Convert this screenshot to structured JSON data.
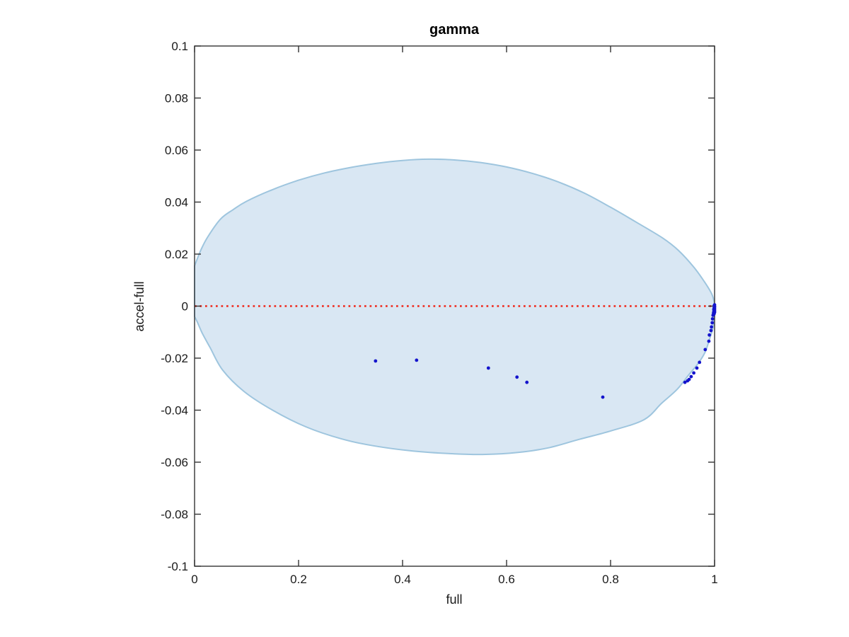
{
  "figure": {
    "title": "gamma",
    "xlabel": "full",
    "ylabel": "accel-full"
  },
  "chart_data": {
    "type": "scatter",
    "title": "gamma",
    "xlabel": "full",
    "ylabel": "accel-full",
    "xlim": [
      0,
      1
    ],
    "ylim": [
      -0.1,
      0.1
    ],
    "grid": false,
    "legend": "none",
    "x_ticks": {
      "values": [
        0,
        0.2,
        0.4,
        0.6,
        0.8,
        1
      ],
      "labels": [
        "0",
        "0.2",
        "0.4",
        "0.6",
        "0.8",
        "1"
      ]
    },
    "y_ticks": {
      "values": [
        0.1,
        0.08,
        0.06,
        0.04,
        0.02,
        0,
        -0.02,
        -0.04,
        -0.06,
        -0.08,
        -0.1
      ],
      "labels": [
        "0.1",
        "0.08",
        "0.06",
        "0.04",
        "0.02",
        "0",
        "-0.02",
        "-0.04",
        "-0.06",
        "-0.08",
        "-0.1"
      ]
    },
    "zero_line": {
      "y": 0,
      "style": "dotted",
      "color": "#ee3529"
    },
    "envelope": {
      "fill": "#d9e7f3",
      "stroke": "#9ec5de",
      "upper": [
        [
          0,
          0.0155
        ],
        [
          0.012,
          0.0215
        ],
        [
          0.025,
          0.0265
        ],
        [
          0.05,
          0.0335
        ],
        [
          0.075,
          0.0372
        ],
        [
          0.1,
          0.0403
        ],
        [
          0.15,
          0.0448
        ],
        [
          0.2,
          0.0484
        ],
        [
          0.25,
          0.0512
        ],
        [
          0.3,
          0.0533
        ],
        [
          0.35,
          0.0549
        ],
        [
          0.4,
          0.056
        ],
        [
          0.45,
          0.0565
        ],
        [
          0.5,
          0.0562
        ],
        [
          0.55,
          0.0552
        ],
        [
          0.6,
          0.0535
        ],
        [
          0.65,
          0.051
        ],
        [
          0.7,
          0.0477
        ],
        [
          0.75,
          0.0434
        ],
        [
          0.8,
          0.038
        ],
        [
          0.85,
          0.0322
        ],
        [
          0.9,
          0.0262
        ],
        [
          0.93,
          0.0215
        ],
        [
          0.96,
          0.015
        ],
        [
          0.98,
          0.0095
        ],
        [
          0.995,
          0.0045
        ],
        [
          1,
          0.0005
        ]
      ],
      "lower": [
        [
          0,
          -0.004
        ],
        [
          0.005,
          -0.006
        ],
        [
          0.015,
          -0.0105
        ],
        [
          0.03,
          -0.016
        ],
        [
          0.054,
          -0.0246
        ],
        [
          0.095,
          -0.0328
        ],
        [
          0.15,
          -0.04
        ],
        [
          0.214,
          -0.0464
        ],
        [
          0.282,
          -0.051
        ],
        [
          0.344,
          -0.0537
        ],
        [
          0.42,
          -0.0557
        ],
        [
          0.5,
          -0.0568
        ],
        [
          0.56,
          -0.057
        ],
        [
          0.62,
          -0.0563
        ],
        [
          0.68,
          -0.0545
        ],
        [
          0.74,
          -0.0512
        ],
        [
          0.8,
          -0.048
        ],
        [
          0.864,
          -0.0437
        ],
        [
          0.898,
          -0.0374
        ],
        [
          0.928,
          -0.032
        ],
        [
          0.95,
          -0.0265
        ],
        [
          0.969,
          -0.0219
        ],
        [
          0.982,
          -0.0176
        ],
        [
          0.99,
          -0.0129
        ],
        [
          0.997,
          -0.0083
        ],
        [
          1,
          -0.003
        ]
      ]
    },
    "scatter": {
      "color": "#1414cc",
      "marker": "dot",
      "points": [
        [
          0.348,
          -0.0211
        ],
        [
          0.427,
          -0.0208
        ],
        [
          0.565,
          -0.0238
        ],
        [
          0.62,
          -0.0273
        ],
        [
          0.639,
          -0.0293
        ],
        [
          0.785,
          -0.035
        ],
        [
          0.943,
          -0.0293
        ],
        [
          0.948,
          -0.0287
        ],
        [
          0.951,
          -0.0282
        ],
        [
          0.955,
          -0.0271
        ],
        [
          0.96,
          -0.0257
        ],
        [
          0.966,
          -0.0238
        ],
        [
          0.971,
          -0.0216
        ],
        [
          0.982,
          -0.0167
        ],
        [
          0.989,
          -0.0135
        ],
        [
          0.99,
          -0.0111
        ],
        [
          0.993,
          -0.0094
        ],
        [
          0.994,
          -0.008
        ],
        [
          0.9955,
          -0.0064
        ],
        [
          0.996,
          -0.0049
        ],
        [
          0.997,
          -0.0035
        ],
        [
          0.998,
          -0.0027
        ],
        [
          0.9985,
          -0.0022
        ],
        [
          0.999,
          -0.003
        ],
        [
          0.999,
          -0.0017
        ],
        [
          0.9995,
          -0.0013
        ],
        [
          1,
          -0.0019
        ],
        [
          1,
          -0.001
        ],
        [
          0.9995,
          -0.0006
        ],
        [
          1,
          -0.0004
        ],
        [
          0.999,
          -0.0008
        ],
        [
          1,
          -0.0001
        ],
        [
          0.9995,
          0.0002
        ],
        [
          1,
          0.0005
        ],
        [
          0.9985,
          -0.0013
        ],
        [
          1,
          -0.0024
        ],
        [
          0.9998,
          -0.0015
        ]
      ]
    },
    "axes_color": "#333333"
  }
}
